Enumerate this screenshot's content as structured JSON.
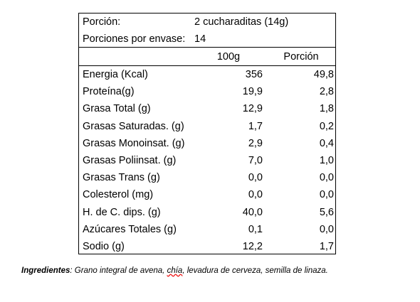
{
  "serving": {
    "label": "Porción:",
    "value": "2 cucharaditas (14g)"
  },
  "servings_per_container": {
    "label": "Porciones por envase:",
    "value": "14"
  },
  "table": {
    "columns": [
      "100g",
      "Porción"
    ],
    "rows": [
      [
        "Energia (Kcal)",
        "356",
        "49,8"
      ],
      [
        "Proteína(g)",
        "19,9",
        "2,8"
      ],
      [
        "Grasa Total (g)",
        "12,9",
        "1,8"
      ],
      [
        "Grasas Saturadas. (g)",
        "1,7",
        "0,2"
      ],
      [
        "Grasas Monoinsat. (g)",
        "2,9",
        "0,4"
      ],
      [
        "Grasas Poliinsat. (g)",
        "7,0",
        "1,0"
      ],
      [
        "Grasas Trans (g)",
        "0,0",
        "0,0"
      ],
      [
        "Colesterol (mg)",
        "0,0",
        "0,0"
      ],
      [
        "H. de C. dips. (g)",
        "40,0",
        "5,6"
      ],
      [
        "Azúcares Totales (g)",
        "0,1",
        "0,0"
      ],
      [
        "Sodio (g)",
        "12,2",
        "1,7"
      ]
    ]
  },
  "ingredients": {
    "label": "Ingredientes",
    "text": [
      ": Grano integral de avena, ",
      "chía",
      ", levadura de cerveza, semilla de linaza."
    ]
  }
}
